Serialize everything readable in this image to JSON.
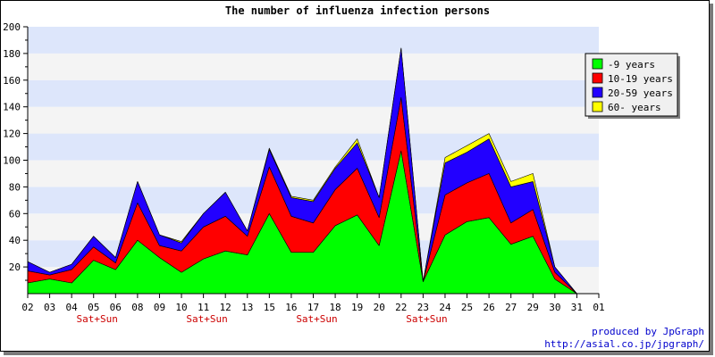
{
  "chart_data": {
    "type": "area",
    "stacked": true,
    "title": "The number of influenza infection persons",
    "x": [
      "02",
      "03",
      "04",
      "05",
      "06",
      "08",
      "09",
      "10",
      "11",
      "12",
      "13",
      "15",
      "16",
      "17",
      "18",
      "19",
      "20",
      "22",
      "23",
      "24",
      "25",
      "26",
      "27",
      "29",
      "30",
      "31",
      "01"
    ],
    "x_sublabels": [
      {
        "x": "05",
        "text": "Sat+Sun"
      },
      {
        "x": "11",
        "text": "Sat+Sun"
      },
      {
        "x": "17",
        "text": "Sat+Sun"
      },
      {
        "x": "23",
        "text": "Sat+Sun"
      }
    ],
    "ylim": [
      0,
      200
    ],
    "yticks": [
      20,
      40,
      60,
      80,
      100,
      120,
      140,
      160,
      180,
      200
    ],
    "series": [
      {
        "name": "-9 years",
        "color": "#00ff00",
        "values": [
          8,
          11,
          8,
          25,
          18,
          40,
          27,
          16,
          26,
          32,
          29,
          60,
          31,
          31,
          51,
          59,
          36,
          107,
          9,
          44,
          54,
          57,
          37,
          43,
          11,
          0,
          0
        ]
      },
      {
        "name": "10-19 years",
        "color": "#ff0000",
        "values": [
          9,
          3,
          10,
          10,
          5,
          28,
          9,
          16,
          24,
          26,
          14,
          35,
          27,
          22,
          27,
          35,
          21,
          40,
          0,
          30,
          29,
          33,
          16,
          20,
          5,
          0,
          0
        ]
      },
      {
        "name": "20-59 years",
        "color": "#2200ff",
        "values": [
          7,
          2,
          4,
          8,
          4,
          16,
          8,
          6,
          10,
          18,
          4,
          13,
          14,
          16,
          16,
          19,
          15,
          37,
          0,
          24,
          23,
          26,
          27,
          21,
          4,
          0,
          0
        ]
      },
      {
        "name": "60- years",
        "color": "#ffff00",
        "values": [
          0,
          0,
          0,
          0,
          0,
          0,
          0,
          1,
          0,
          0,
          0,
          1,
          1,
          1,
          1,
          3,
          0,
          0,
          0,
          4,
          5,
          4,
          4,
          6,
          0,
          0,
          0
        ]
      }
    ],
    "grid": "horizontal-bands",
    "legend": "top-right"
  },
  "credit": {
    "line1": "produced by JpGraph",
    "line2": "http://asial.co.jp/jpgraph/"
  },
  "colors": {
    "band_blue": "#dde6fb",
    "band_white": "#f4f4f4"
  }
}
